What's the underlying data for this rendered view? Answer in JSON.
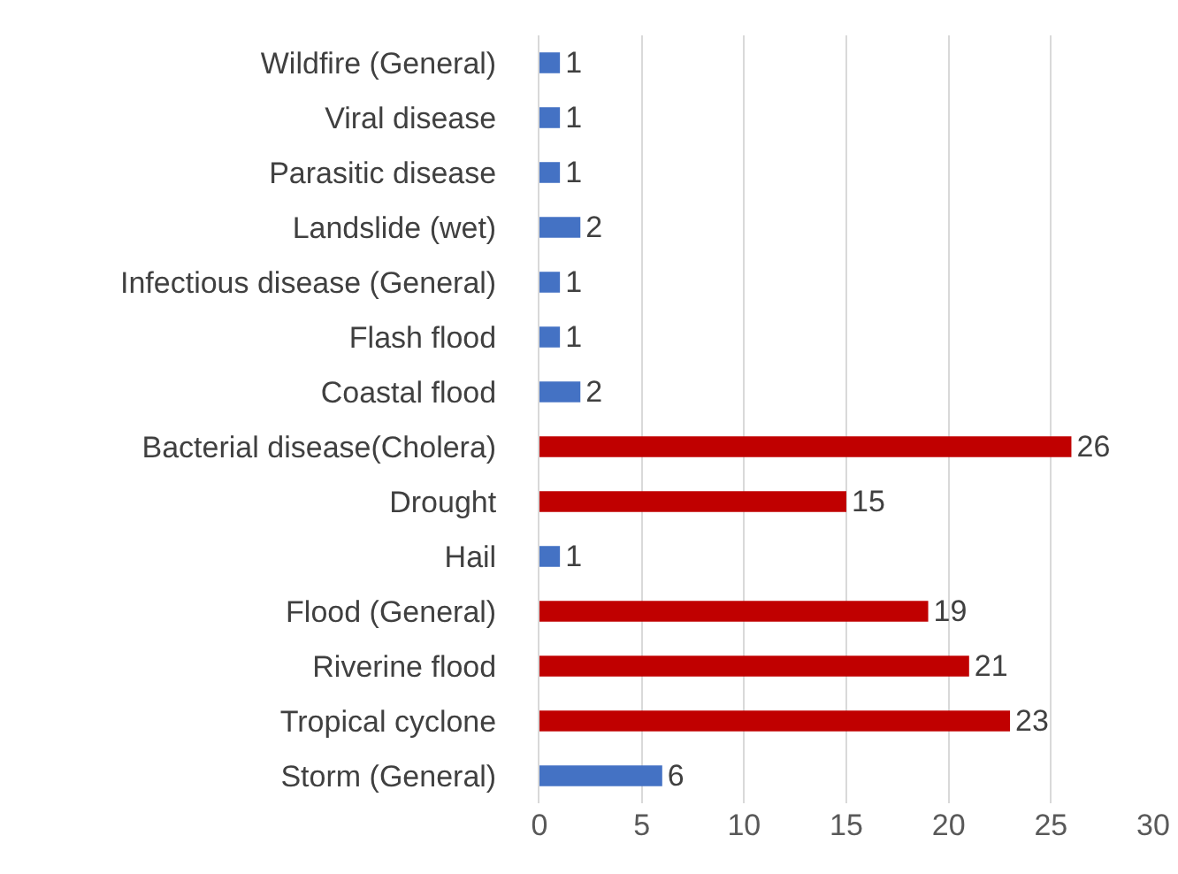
{
  "chart_data": {
    "type": "bar",
    "orientation": "horizontal",
    "categories": [
      "Wildfire (General)",
      "Viral disease",
      "Parasitic disease",
      "Landslide (wet)",
      "Infectious disease (General)",
      "Flash flood",
      "Coastal flood",
      "Bacterial disease(Cholera)",
      "Drought",
      "Hail",
      "Flood (General)",
      "Riverine flood",
      "Tropical cyclone",
      "Storm (General)"
    ],
    "values": [
      1,
      1,
      1,
      2,
      1,
      1,
      2,
      26,
      15,
      1,
      19,
      21,
      23,
      6
    ],
    "colors": [
      "#4472c4",
      "#4472c4",
      "#4472c4",
      "#4472c4",
      "#4472c4",
      "#4472c4",
      "#4472c4",
      "#c00000",
      "#c00000",
      "#4472c4",
      "#c00000",
      "#c00000",
      "#c00000",
      "#4472c4"
    ],
    "xlim": [
      0,
      30
    ],
    "xticks": [
      0,
      5,
      10,
      15,
      20,
      25,
      30
    ],
    "grid": "x",
    "data_labels": true
  }
}
